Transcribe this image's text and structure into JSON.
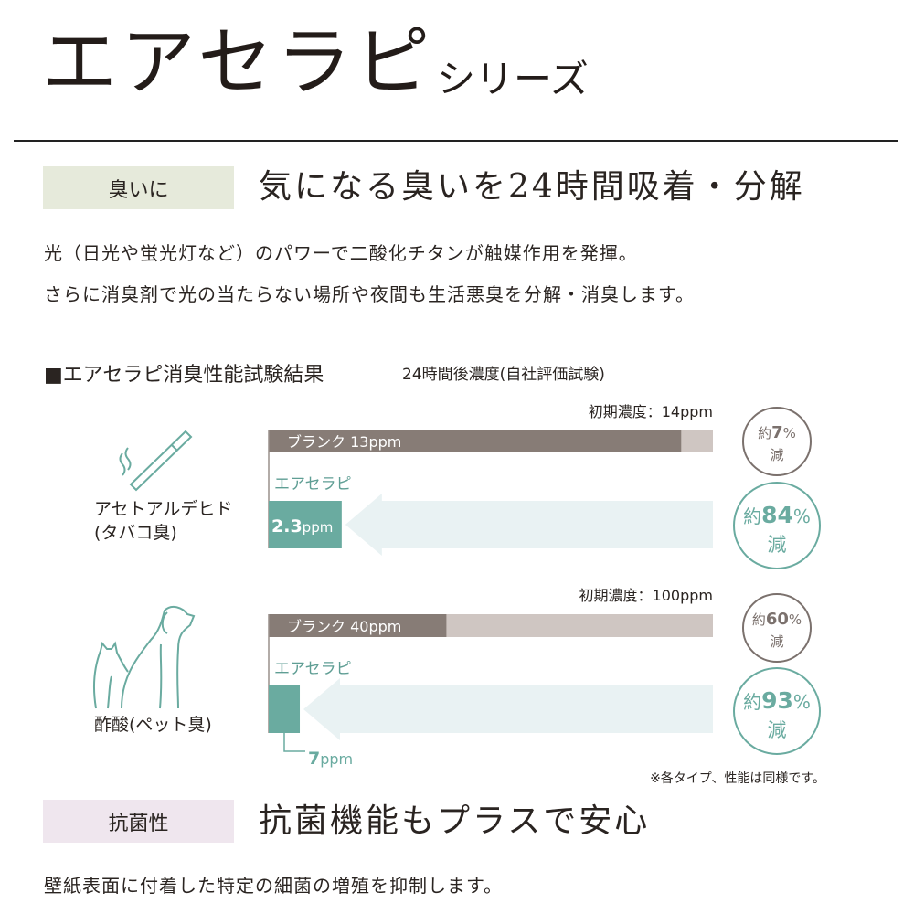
{
  "header": {
    "title": "エアセラピ",
    "subtitle": "シリーズ"
  },
  "section1": {
    "tag": "臭いに",
    "heading": "気になる臭いを24時間吸着・分解",
    "body": [
      "光（日光や蛍光灯など）のパワーで二酸化チタンが触媒作用を発揮。",
      "さらに消臭剤で光の当たらない場所や夜間も生活悪臭を分解・消臭します。"
    ],
    "tag_color": "#e6eadb"
  },
  "results": {
    "title": "■エアセラピ消臭性能試験結果",
    "subtitle": "24時間後濃度(自社評価試験)",
    "note": "※各タイプ、性能は同様です。"
  },
  "chart_data": [
    {
      "type": "bar",
      "odor": "アセトアルデヒド",
      "odor_note": "(タバコ臭)",
      "icon": "cigarette-icon",
      "initial_label": "初期濃度：14ppm",
      "initial_ppm": 14,
      "blank": {
        "label": "ブランク 13ppm",
        "value": 13,
        "reduction_prefix": "約",
        "reduction_value": "7",
        "reduction_unit": "%",
        "reduction_suffix": "減"
      },
      "product": {
        "name": "エアセラピ",
        "value": 2.3,
        "value_label": "2.3",
        "unit": "ppm",
        "reduction_prefix": "約",
        "reduction_value": "84",
        "reduction_unit": "%",
        "reduction_suffix": "減"
      }
    },
    {
      "type": "bar",
      "odor": "酢酸",
      "odor_note": "(ペット臭)",
      "icon": "dog-and-cat-icon",
      "initial_label": "初期濃度：100ppm",
      "initial_ppm": 100,
      "blank": {
        "label": "ブランク 40ppm",
        "value": 40,
        "reduction_prefix": "約",
        "reduction_value": "60",
        "reduction_unit": "%",
        "reduction_suffix": "減"
      },
      "product": {
        "name": "エアセラピ",
        "value": 7,
        "value_label": "7",
        "unit": "ppm",
        "reduction_prefix": "約",
        "reduction_value": "93",
        "reduction_unit": "%",
        "reduction_suffix": "減"
      }
    }
  ],
  "section2": {
    "tag": "抗菌性",
    "heading": "抗菌機能もプラスで安心",
    "body": "壁紙表面に付着した特定の細菌の増殖を抑制します。",
    "tag_color": "#efe6ee"
  },
  "colors": {
    "blank_dark": "#877c76",
    "blank_light": "#cfc6c2",
    "teal": "#6aaba0",
    "arrow": "#e9f2f3",
    "gray_circle": "#7b716d"
  }
}
